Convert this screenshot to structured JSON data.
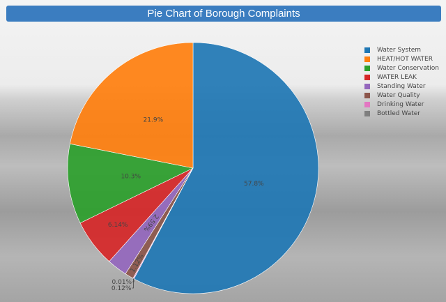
{
  "chart_data": {
    "type": "pie",
    "title": "Pie Chart of Borough Complaints",
    "labels": [
      "Water System",
      "HEAT/HOT WATER",
      "Water Conservation",
      "WATER LEAK",
      "Standing Water",
      "Water Quality",
      "Drinking Water",
      "Bottled Water"
    ],
    "values": [
      57.8,
      21.9,
      10.3,
      6.14,
      2.59,
      1.12,
      0.12,
      0.01
    ],
    "text": [
      "57.8%",
      "21.9%",
      "10.3%",
      "6.14%",
      "2.59%",
      "1.12%",
      "0.12%",
      "0.01%"
    ],
    "colors": [
      "#1f77b4",
      "#ff7f0e",
      "#2ca02c",
      "#d62728",
      "#9467bd",
      "#8c564b",
      "#e377c2",
      "#7f7f7f"
    ],
    "direction": "counterclockwise",
    "legend_position": "top-right"
  }
}
